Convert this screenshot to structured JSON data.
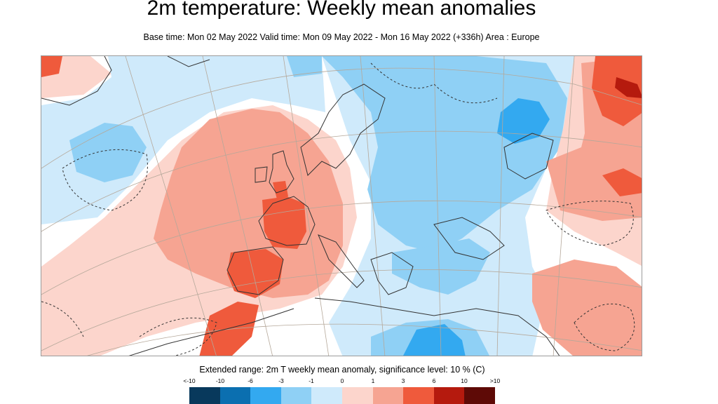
{
  "header": {
    "title": "2m temperature: Weekly mean anomalies",
    "subtitle": "Base time: Mon 02 May 2022 Valid time: Mon 09 May 2022 - Mon 16 May 2022 (+336h) Area : Europe"
  },
  "map": {
    "region": "Europe",
    "variable": "2m temperature weekly mean anomaly",
    "colors": {
      "background": "#ffffff",
      "land_outline": "#333333",
      "graticule": "#b5a89a",
      "border": "#777777"
    }
  },
  "legend": {
    "title": "Extended range: 2m T weekly mean anomaly, significance level: 10 % (C)",
    "tick_labels": [
      "<-10",
      "-10",
      "-6",
      "-3",
      "-1",
      "0",
      "1",
      "3",
      "6",
      "10",
      ">10"
    ],
    "bins": [
      {
        "range": "<-10",
        "color": "#08395c"
      },
      {
        "range": "-10 to -6",
        "color": "#0b6fb0"
      },
      {
        "range": "-6 to -3",
        "color": "#33a9f0"
      },
      {
        "range": "-3 to -1",
        "color": "#8fd0f5"
      },
      {
        "range": "-1 to 0",
        "color": "#cfeafb"
      },
      {
        "range": "0 to 1",
        "color": "#fcd5cc"
      },
      {
        "range": "1 to 3",
        "color": "#f6a492"
      },
      {
        "range": "3 to 6",
        "color": "#ef5a3c"
      },
      {
        "range": "6 to 10",
        "color": "#b51a0e"
      },
      {
        "range": ">10",
        "color": "#5e0a06"
      }
    ]
  }
}
